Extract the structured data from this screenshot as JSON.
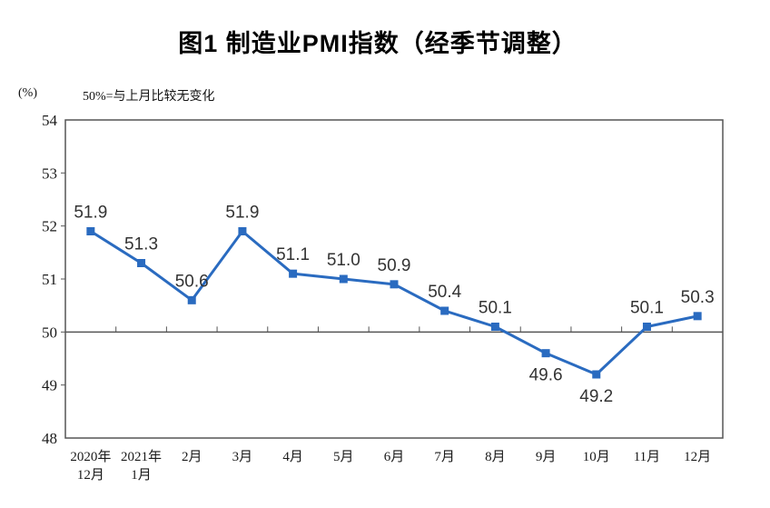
{
  "title": "图1 制造业PMI指数（经季节调整）",
  "unit_label": "(%)",
  "reference_note": "50%=与上月比较无变化",
  "chart_data": {
    "type": "line",
    "title": "图1 制造业PMI指数（经季节调整）",
    "xlabel": "",
    "ylabel": "%",
    "ylim": [
      48,
      54
    ],
    "yticks": [
      48,
      49,
      50,
      51,
      52,
      53,
      54
    ],
    "reference_line": 50,
    "grid": false,
    "legend": "none",
    "categories": [
      "2020年12月",
      "2021年1月",
      "2月",
      "3月",
      "4月",
      "5月",
      "6月",
      "7月",
      "8月",
      "9月",
      "10月",
      "11月",
      "12月"
    ],
    "category_lines": [
      [
        "2020年",
        "12月"
      ],
      [
        "2021年",
        "1月"
      ],
      [
        "2月"
      ],
      [
        "3月"
      ],
      [
        "4月"
      ],
      [
        "5月"
      ],
      [
        "6月"
      ],
      [
        "7月"
      ],
      [
        "8月"
      ],
      [
        "9月"
      ],
      [
        "10月"
      ],
      [
        "11月"
      ],
      [
        "12月"
      ]
    ],
    "series": [
      {
        "name": "制造业PMI",
        "values": [
          51.9,
          51.3,
          50.6,
          51.9,
          51.1,
          51.0,
          50.9,
          50.4,
          50.1,
          49.6,
          49.2,
          50.1,
          50.3
        ]
      }
    ],
    "data_labels": [
      "51.9",
      "51.3",
      "50.6",
      "51.9",
      "51.1",
      "51.0",
      "50.9",
      "50.4",
      "50.1",
      "49.6",
      "49.2",
      "50.1",
      "50.3"
    ],
    "label_position": [
      "above",
      "above",
      "above",
      "above",
      "above",
      "above",
      "above",
      "above",
      "above",
      "below",
      "below",
      "above",
      "above"
    ],
    "marker": "square",
    "line_color": "#2A6BC0",
    "axis_color": "#555555",
    "label_color": "#333333",
    "tick_label_color": "#1a1a1a"
  }
}
